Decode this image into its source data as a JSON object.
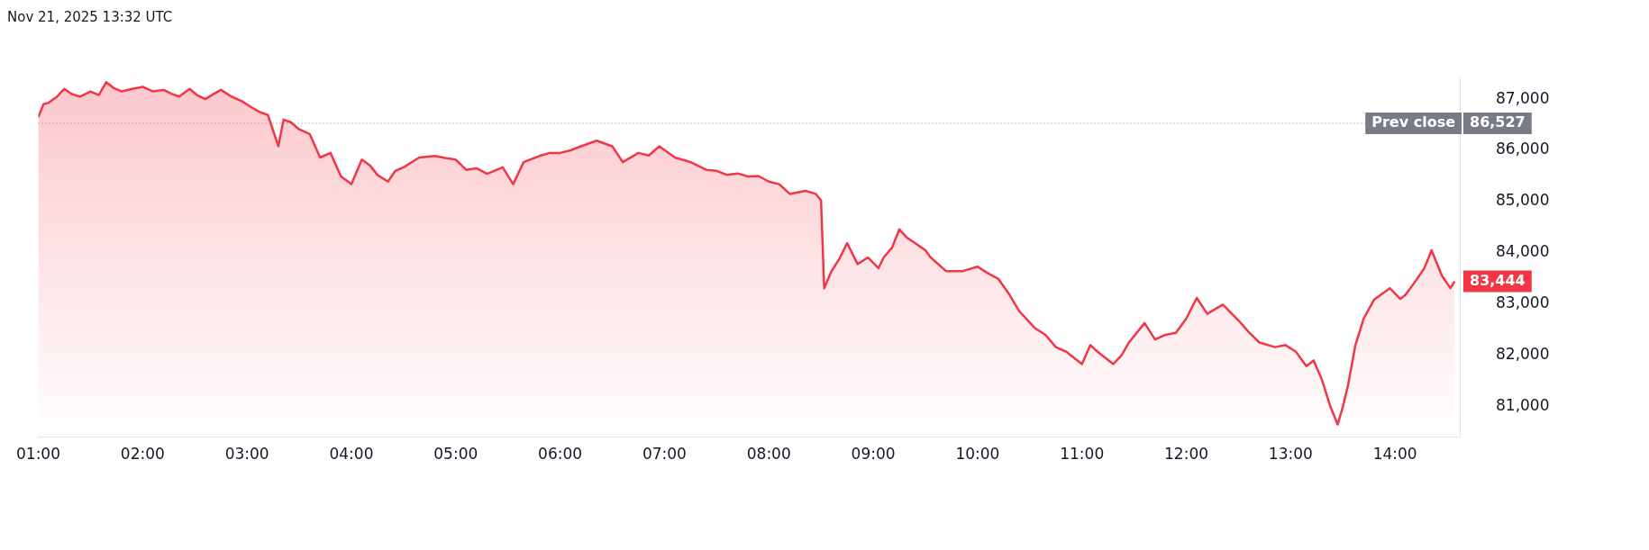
{
  "chart_data": {
    "type": "area",
    "title": "Nov 21, 2025 13:32 UTC",
    "x": [
      1.0,
      1.05,
      1.1,
      1.18,
      1.25,
      1.32,
      1.4,
      1.5,
      1.58,
      1.65,
      1.72,
      1.8,
      1.9,
      2.0,
      2.1,
      2.2,
      2.28,
      2.35,
      2.45,
      2.52,
      2.6,
      2.68,
      2.75,
      2.85,
      2.95,
      3.05,
      3.12,
      3.2,
      3.3,
      3.35,
      3.42,
      3.5,
      3.6,
      3.7,
      3.8,
      3.9,
      4.0,
      4.1,
      4.18,
      4.25,
      4.35,
      4.42,
      4.5,
      4.65,
      4.8,
      4.9,
      5.0,
      5.1,
      5.2,
      5.3,
      5.45,
      5.55,
      5.65,
      5.8,
      5.9,
      6.0,
      6.1,
      6.2,
      6.35,
      6.5,
      6.6,
      6.75,
      6.85,
      6.95,
      7.1,
      7.25,
      7.4,
      7.5,
      7.6,
      7.7,
      7.8,
      7.9,
      8.0,
      8.1,
      8.2,
      8.35,
      8.45,
      8.5,
      8.53,
      8.57,
      8.6,
      8.68,
      8.75,
      8.85,
      8.95,
      9.05,
      9.1,
      9.18,
      9.25,
      9.32,
      9.4,
      9.5,
      9.55,
      9.7,
      9.85,
      10.0,
      10.1,
      10.2,
      10.3,
      10.4,
      10.55,
      10.65,
      10.75,
      10.85,
      11.0,
      11.08,
      11.15,
      11.3,
      11.38,
      11.45,
      11.6,
      11.7,
      11.8,
      11.9,
      12.0,
      12.1,
      12.2,
      12.35,
      12.5,
      12.6,
      12.7,
      12.85,
      12.95,
      13.05,
      13.15,
      13.22,
      13.3,
      13.38,
      13.45,
      13.5,
      13.55,
      13.62,
      13.7,
      13.8,
      13.95,
      14.05,
      14.1,
      14.2,
      14.28,
      14.35,
      14.45,
      14.53,
      14.57
    ],
    "series": [
      {
        "color": "#f23645",
        "values": [
          86650,
          86900,
          86930,
          87050,
          87200,
          87100,
          87050,
          87150,
          87080,
          87330,
          87220,
          87150,
          87200,
          87240,
          87150,
          87180,
          87100,
          87050,
          87200,
          87080,
          87000,
          87100,
          87180,
          87050,
          86960,
          86830,
          86750,
          86690,
          86080,
          86600,
          86550,
          86410,
          86320,
          85860,
          85950,
          85490,
          85340,
          85820,
          85700,
          85520,
          85390,
          85600,
          85670,
          85860,
          85890,
          85850,
          85820,
          85620,
          85650,
          85540,
          85670,
          85340,
          85770,
          85890,
          85950,
          85950,
          86000,
          86080,
          86190,
          86080,
          85770,
          85950,
          85900,
          86080,
          85860,
          85770,
          85620,
          85600,
          85520,
          85550,
          85490,
          85500,
          85390,
          85340,
          85150,
          85210,
          85150,
          85020,
          83310,
          83500,
          83640,
          83900,
          84190,
          83780,
          83910,
          83700,
          83910,
          84100,
          84460,
          84300,
          84190,
          84050,
          83910,
          83640,
          83640,
          83730,
          83600,
          83490,
          83200,
          82860,
          82530,
          82400,
          82160,
          82070,
          81830,
          82200,
          82070,
          81830,
          82000,
          82250,
          82630,
          82310,
          82400,
          82440,
          82720,
          83120,
          82810,
          82990,
          82680,
          82450,
          82250,
          82160,
          82200,
          82070,
          81790,
          81900,
          81520,
          81000,
          80650,
          81000,
          81420,
          82200,
          82720,
          83090,
          83310,
          83100,
          83180,
          83460,
          83700,
          84050,
          83550,
          83310,
          83444
        ]
      }
    ],
    "xlim": [
      1,
      14.62
    ],
    "xticks": [
      {
        "value": 1,
        "label": "01:00"
      },
      {
        "value": 2,
        "label": "02:00"
      },
      {
        "value": 3,
        "label": "03:00"
      },
      {
        "value": 4,
        "label": "04:00"
      },
      {
        "value": 5,
        "label": "05:00"
      },
      {
        "value": 6,
        "label": "06:00"
      },
      {
        "value": 7,
        "label": "07:00"
      },
      {
        "value": 8,
        "label": "08:00"
      },
      {
        "value": 9,
        "label": "09:00"
      },
      {
        "value": 10,
        "label": "10:00"
      },
      {
        "value": 11,
        "label": "11:00"
      },
      {
        "value": 12,
        "label": "12:00"
      },
      {
        "value": 13,
        "label": "13:00"
      },
      {
        "value": 14,
        "label": "14:00"
      }
    ],
    "ylim": [
      80400,
      87420
    ],
    "yticks": [
      {
        "value": 81000,
        "label": "81,000"
      },
      {
        "value": 82000,
        "label": "82,000"
      },
      {
        "value": 83000,
        "label": "83,000"
      },
      {
        "value": 84000,
        "label": "84,000"
      },
      {
        "value": 85000,
        "label": "85,000"
      },
      {
        "value": 86000,
        "label": "86,000"
      },
      {
        "value": 87000,
        "label": "87,000"
      }
    ],
    "ref_lines": [
      {
        "axis": "y",
        "value": 86527,
        "label": "Prev close",
        "color": "#787b86",
        "line_style": "dotted"
      }
    ],
    "annotations": [
      {
        "text": "86,527",
        "x": 14.57,
        "y": 86527
      },
      {
        "text": "83,444",
        "x": 14.57,
        "y": 83444
      }
    ],
    "grid": false,
    "legend": false,
    "marker": "none",
    "line_style": "solid"
  }
}
